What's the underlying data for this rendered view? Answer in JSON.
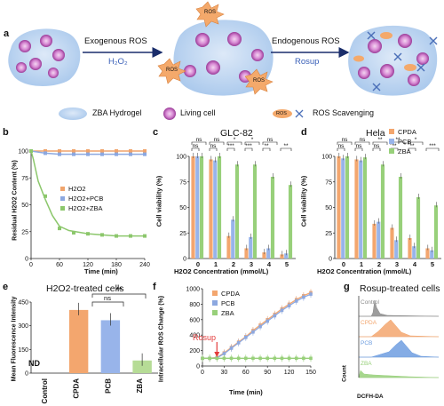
{
  "panel_labels": {
    "a": "a",
    "b": "b",
    "c": "c",
    "d": "d",
    "e": "e",
    "f": "f",
    "g": "g"
  },
  "scheme": {
    "exo_label": "Exogenous ROS",
    "exo_sub": "H₂O₂",
    "endo_label": "Endogenous ROS",
    "endo_sub": "Rosup",
    "ros_tag": "ROS",
    "legend_hydrogel": "ZBA Hydrogel",
    "legend_cell": "Living cell",
    "legend_scav": "ROS Scavenging",
    "colors": {
      "blob": "#c9ddf4",
      "cell": "#b64fb4",
      "arrow": "#1a2d6b",
      "ros": "#f4a96b"
    }
  },
  "chart_data": [
    {
      "id": "b",
      "type": "line",
      "xlabel": "Time (min)",
      "ylabel": "Residual H2O2 Content (%)",
      "xlim": [
        0,
        240
      ],
      "ylim": [
        0,
        100
      ],
      "xticks": [
        0,
        60,
        120,
        180,
        240
      ],
      "yticks": [
        0,
        25,
        50,
        75,
        100
      ],
      "series": [
        {
          "name": "H2O2",
          "color": "#f0a46c",
          "x": [
            0,
            30,
            60,
            90,
            120,
            150,
            180,
            210,
            240
          ],
          "y": [
            100,
            100,
            100,
            100,
            100,
            100,
            100,
            100,
            100
          ]
        },
        {
          "name": "H2O2+PCB",
          "color": "#8ca8e0",
          "x": [
            0,
            30,
            60,
            90,
            120,
            150,
            180,
            210,
            240
          ],
          "y": [
            100,
            98,
            97,
            97,
            97,
            97,
            97,
            97,
            97
          ]
        },
        {
          "name": "H2O2+ZBA",
          "color": "#8cc76c",
          "x": [
            0,
            30,
            60,
            90,
            120,
            150,
            180,
            210,
            240
          ],
          "y": [
            100,
            58,
            28,
            24,
            23,
            22,
            21,
            21,
            21
          ]
        }
      ]
    },
    {
      "id": "c",
      "type": "bar",
      "title": "GLC-82",
      "xlabel": "H2O2 Concentration (mmol/L)",
      "ylabel": "Cell viability (%)",
      "ylim": [
        0,
        100
      ],
      "yticks": [
        0,
        25,
        50,
        75,
        100
      ],
      "categories": [
        "0",
        "1",
        "2",
        "3",
        "4",
        "5"
      ],
      "series": [
        {
          "name": "CPDA",
          "color": "#f3a66e",
          "values": [
            100,
            97,
            22,
            10,
            6,
            4
          ]
        },
        {
          "name": "PCB",
          "color": "#98b4ea",
          "values": [
            100,
            96,
            38,
            21,
            10,
            5
          ]
        },
        {
          "name": "ZBA",
          "color": "#98d07a",
          "values": [
            100,
            100,
            92,
            92,
            80,
            72
          ]
        }
      ],
      "sig": [
        "ns",
        "ns",
        "ns",
        "ns",
        "***",
        "*",
        "***",
        "*",
        "**",
        "ns",
        "**"
      ]
    },
    {
      "id": "d",
      "type": "bar",
      "title": "Hela",
      "xlabel": "H2O2 Concentration (mmol/L)",
      "ylabel": "Cell viability (%)",
      "ylim": [
        0,
        100
      ],
      "yticks": [
        0,
        25,
        50,
        75,
        100
      ],
      "categories": [
        "0",
        "1",
        "2",
        "3",
        "4",
        "5"
      ],
      "series": [
        {
          "name": "CPDA",
          "color": "#f3a66e",
          "values": [
            100,
            97,
            34,
            30,
            20,
            10
          ]
        },
        {
          "name": "PCB",
          "color": "#98b4ea",
          "values": [
            98,
            96,
            36,
            18,
            12,
            8
          ]
        },
        {
          "name": "ZBA",
          "color": "#98d07a",
          "values": [
            100,
            99,
            92,
            80,
            60,
            52
          ]
        }
      ],
      "sig": [
        "ns",
        "ns",
        "ns",
        "ns",
        "ns",
        "**",
        "**",
        "**",
        "**",
        "*",
        "***"
      ]
    },
    {
      "id": "e",
      "type": "bar",
      "title": "H2O2-treated cells",
      "ylabel": "Mean Fluorescence Intensity",
      "ylim": [
        0,
        450
      ],
      "yticks": [
        0,
        150,
        300,
        450
      ],
      "categories": [
        "Control",
        "CPDA",
        "PCB",
        "ZBA"
      ],
      "values": [
        0,
        400,
        335,
        80
      ],
      "colors": [
        "#ffffff",
        "#f3a66e",
        "#98b4ea",
        "#b6dc96"
      ],
      "annotations": [
        "ND",
        "ns",
        "**"
      ]
    },
    {
      "id": "f",
      "type": "line",
      "xlabel": "Time (min)",
      "ylabel": "Intracellular ROS Change (%)",
      "xlim": [
        0,
        150
      ],
      "ylim": [
        0,
        1000
      ],
      "xticks": [
        0,
        30,
        60,
        90,
        120,
        150
      ],
      "yticks": [
        0,
        200,
        400,
        600,
        800,
        1000
      ],
      "annotation": "Rosup",
      "series": [
        {
          "name": "CPDA",
          "color": "#f3a66e",
          "x": [
            0,
            10,
            20,
            30,
            40,
            50,
            60,
            70,
            80,
            90,
            100,
            110,
            120,
            130,
            140,
            150
          ],
          "y": [
            100,
            100,
            110,
            170,
            240,
            310,
            380,
            460,
            530,
            600,
            670,
            740,
            800,
            860,
            910,
            950
          ]
        },
        {
          "name": "PCB",
          "color": "#8ca8e0",
          "x": [
            0,
            10,
            20,
            30,
            40,
            50,
            60,
            70,
            80,
            90,
            100,
            110,
            120,
            130,
            140,
            150
          ],
          "y": [
            100,
            100,
            105,
            160,
            230,
            300,
            370,
            440,
            510,
            580,
            650,
            720,
            780,
            840,
            890,
            930
          ]
        },
        {
          "name": "ZBA",
          "color": "#98d07a",
          "x": [
            0,
            10,
            20,
            30,
            40,
            50,
            60,
            70,
            80,
            90,
            100,
            110,
            120,
            130,
            140,
            150
          ],
          "y": [
            100,
            100,
            100,
            100,
            100,
            100,
            100,
            100,
            100,
            100,
            100,
            100,
            100,
            100,
            100,
            100
          ]
        }
      ]
    },
    {
      "id": "g",
      "type": "area",
      "title": "Rosup-treated cells",
      "xlabel": "DCFH-DA",
      "ylabel": "Count",
      "series": [
        {
          "name": "Control",
          "color": "#8c8c8c"
        },
        {
          "name": "CPDA",
          "color": "#f3a66e"
        },
        {
          "name": "PCB",
          "color": "#6f9ee0"
        },
        {
          "name": "ZBA",
          "color": "#98d07a"
        }
      ]
    }
  ]
}
